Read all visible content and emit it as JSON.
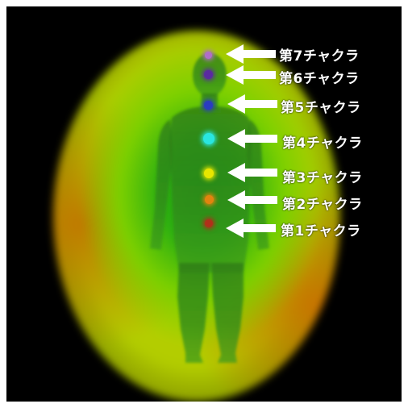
{
  "chakras": [
    {
      "label": "第7チャクラ",
      "color": "#b06ec8"
    },
    {
      "label": "第6チャクラ",
      "color": "#5a2aa0"
    },
    {
      "label": "第5チャクラ",
      "color": "#2a3cc0"
    },
    {
      "label": "第4チャクラ",
      "color": "#29e6e0"
    },
    {
      "label": "第3チャクラ",
      "color": "#e8e600"
    },
    {
      "label": "第2チャクラ",
      "color": "#e2840e"
    },
    {
      "label": "第1チャクラ",
      "color": "#b0301a"
    }
  ],
  "colors": {
    "background": "#000000",
    "arrow": "#ffffff",
    "label_text": "#ffffff",
    "body_silhouette": "#2f7d14",
    "aura_center": "#2eb010",
    "aura_edge": "#c2d800"
  }
}
